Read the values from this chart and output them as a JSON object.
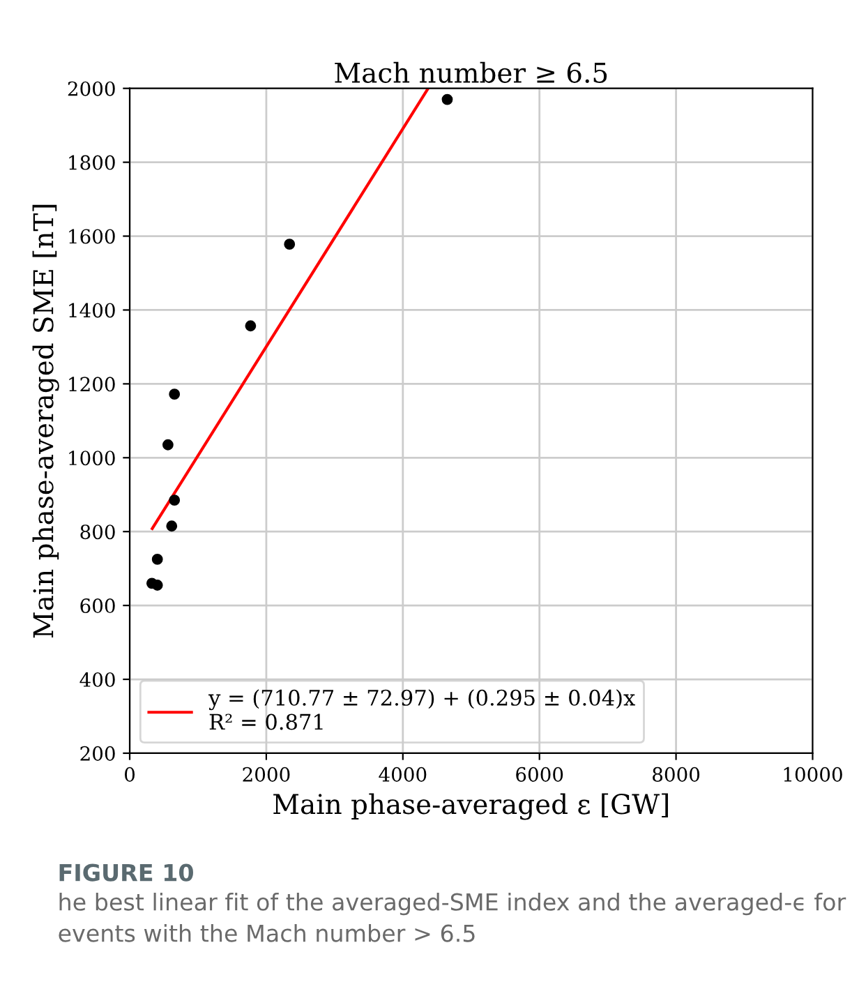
{
  "chart_data": {
    "type": "scatter",
    "title": "Mach number ≥ 6.5",
    "xlabel": "Main phase-averaged ε [GW]",
    "ylabel": "Main phase-averaged SME [nT]",
    "x": [
      4650,
      2340,
      1770,
      655,
      560,
      655,
      615,
      405,
      325,
      405
    ],
    "series": [
      {
        "color": "#000000",
        "marker": "circle",
        "values": [
          1970,
          1578,
          1357,
          1172,
          1035,
          885,
          815,
          725,
          660,
          655
        ]
      },
      {
        "type": "line",
        "name": "y = (710.77 ± 72.97) + (0.295 ± 0.04)x\nR² = 0.871",
        "color": "#ff0000",
        "x": [
          330,
          4370
        ],
        "values": [
          808,
          2000
        ]
      }
    ],
    "xlim": [
      0,
      10000
    ],
    "xticks": [
      0,
      2000,
      4000,
      6000,
      8000,
      10000
    ],
    "ylim": [
      200,
      2000
    ],
    "yticks": [
      200,
      400,
      600,
      800,
      1000,
      1200,
      1400,
      1600,
      1800,
      2000
    ],
    "grid": true,
    "legend": "bottom left",
    "annotations": [
      "FIGURE 10",
      "he best linear fit of the averaged-SME index and the averaged-ϵ for events with the Mach number > 6.5"
    ]
  }
}
